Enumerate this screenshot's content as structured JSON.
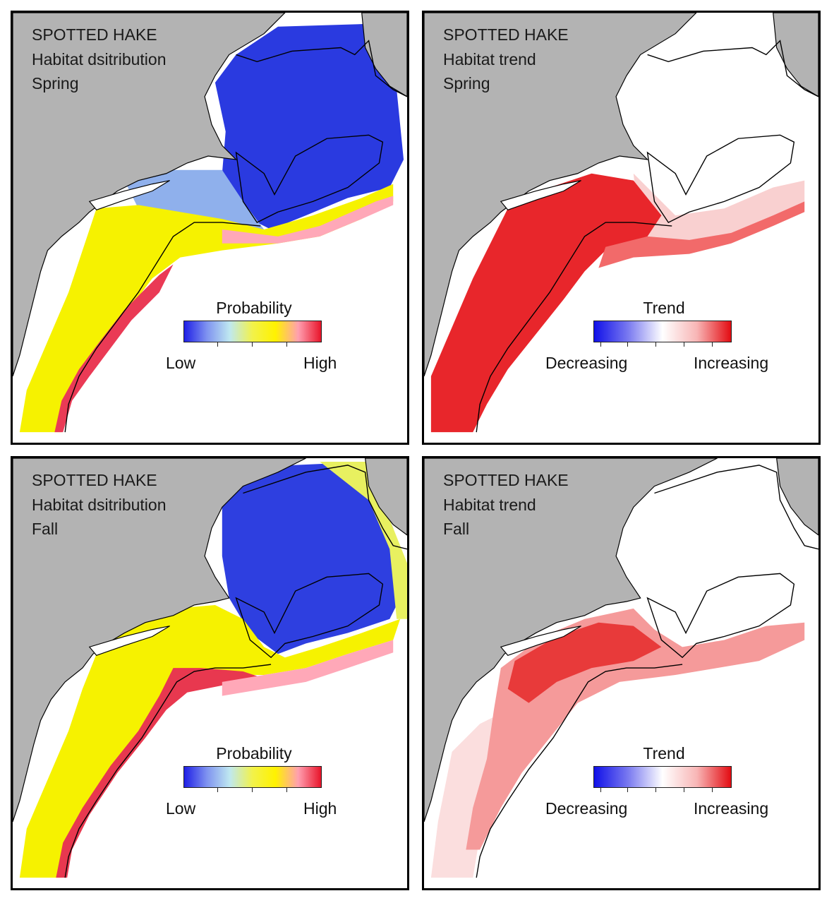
{
  "colors": {
    "land": "#b3b3b3",
    "water": "#ffffff",
    "coast": "#000000",
    "prob_gradient": [
      "#1f1fe6",
      "#7f93f0",
      "#bfe8f0",
      "#f2f24a",
      "#fff200",
      "#ff9fb0",
      "#e8142a"
    ],
    "trend_gradient": [
      "#1010e8",
      "#7a7af0",
      "#ffffff",
      "#f8b6b6",
      "#e30c12"
    ]
  },
  "panels": [
    {
      "id": "spring-distribution",
      "species": "SPOTTED HAKE",
      "subtitle": "Habitat dsitribution",
      "season": "Spring",
      "map_type": "probability",
      "legend": {
        "title": "Probability",
        "low": "Low",
        "high": "High"
      }
    },
    {
      "id": "spring-trend",
      "species": "SPOTTED HAKE",
      "subtitle": "Habitat trend",
      "season": "Spring",
      "map_type": "trend",
      "legend": {
        "title": "Trend",
        "low": "Decreasing",
        "high": "Increasing"
      }
    },
    {
      "id": "fall-distribution",
      "species": "SPOTTED HAKE",
      "subtitle": "Habitat dsitribution",
      "season": "Fall",
      "map_type": "probability",
      "legend": {
        "title": "Probability",
        "low": "Low",
        "high": "High"
      }
    },
    {
      "id": "fall-trend",
      "species": "SPOTTED HAKE",
      "subtitle": "Habitat trend",
      "season": "Fall",
      "map_type": "trend",
      "legend": {
        "title": "Trend",
        "low": "Decreasing",
        "high": "Increasing"
      }
    }
  ]
}
